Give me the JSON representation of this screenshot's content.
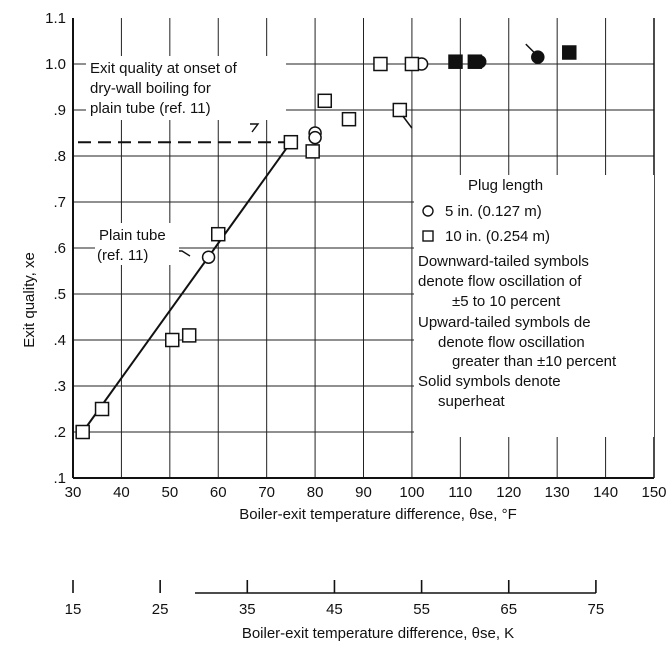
{
  "chart_data": {
    "type": "scatter",
    "xlabel": "Boiler-exit temperature difference, θse, °F",
    "ylabel": "Exit quality, xe",
    "xlim": [
      30,
      150
    ],
    "ylim": [
      0.1,
      1.1
    ],
    "x_ticks": [
      30,
      40,
      50,
      60,
      70,
      80,
      90,
      100,
      110,
      120,
      130,
      140,
      150
    ],
    "y_ticks": [
      ".1",
      ".2",
      ".3",
      ".4",
      ".5",
      ".6",
      ".7",
      ".8",
      ".9",
      "1.0",
      "1.1"
    ],
    "y_tick_values": [
      0.1,
      0.2,
      0.3,
      0.4,
      0.5,
      0.6,
      0.7,
      0.8,
      0.9,
      1.0,
      1.1
    ],
    "grid": true,
    "series": [
      {
        "name": "5 in. (0.127 m)",
        "marker": "circle",
        "points": [
          {
            "x": 58,
            "y": 0.58,
            "fill": "open",
            "tail": "none"
          },
          {
            "x": 80,
            "y": 0.85,
            "fill": "open",
            "tail": "none"
          },
          {
            "x": 80,
            "y": 0.84,
            "fill": "open",
            "tail": "none"
          },
          {
            "x": 102,
            "y": 1.0,
            "fill": "open",
            "tail": "none"
          },
          {
            "x": 114,
            "y": 1.005,
            "fill": "solid",
            "tail": "none"
          },
          {
            "x": 126,
            "y": 1.015,
            "fill": "solid",
            "tail": "up"
          }
        ]
      },
      {
        "name": "10 in. (0.254 m)",
        "marker": "square",
        "points": [
          {
            "x": 32,
            "y": 0.2,
            "fill": "open",
            "tail": "none"
          },
          {
            "x": 36,
            "y": 0.25,
            "fill": "open",
            "tail": "none"
          },
          {
            "x": 50.5,
            "y": 0.4,
            "fill": "open",
            "tail": "none"
          },
          {
            "x": 54,
            "y": 0.41,
            "fill": "open",
            "tail": "none"
          },
          {
            "x": 60,
            "y": 0.63,
            "fill": "open",
            "tail": "none"
          },
          {
            "x": 75,
            "y": 0.83,
            "fill": "open",
            "tail": "none"
          },
          {
            "x": 79.5,
            "y": 0.81,
            "fill": "open",
            "tail": "none"
          },
          {
            "x": 82,
            "y": 0.92,
            "fill": "open",
            "tail": "none"
          },
          {
            "x": 87,
            "y": 0.88,
            "fill": "open",
            "tail": "none"
          },
          {
            "x": 93.5,
            "y": 1.0,
            "fill": "open",
            "tail": "none"
          },
          {
            "x": 97.5,
            "y": 0.9,
            "fill": "open",
            "tail": "down"
          },
          {
            "x": 100,
            "y": 1.0,
            "fill": "open",
            "tail": "none"
          },
          {
            "x": 109,
            "y": 1.005,
            "fill": "solid",
            "tail": "none"
          },
          {
            "x": 113,
            "y": 1.005,
            "fill": "solid",
            "tail": "none"
          },
          {
            "x": 132.5,
            "y": 1.025,
            "fill": "solid",
            "tail": "none"
          }
        ]
      }
    ],
    "plain_tube_line": {
      "x": [
        32,
        75
      ],
      "y": [
        0.2,
        0.83
      ]
    },
    "onset_line_y": 0.83,
    "annotations": {
      "onset": [
        "Exit quality at onset of",
        "dry-wall boiling for",
        "plain tube (ref. 11)"
      ],
      "plain_tube": [
        "Plain tube",
        "(ref. 11)"
      ]
    },
    "legend": {
      "title": "Plug length",
      "circle_label": "5 in. (0.127 m)",
      "square_label": "10 in. (0.254 m)",
      "notes": [
        "Downward-tailed symbols",
        "denote flow oscillation of",
        "±5 to 10 percent",
        "Upward-tailed symbols de",
        "denote flow oscillation",
        "greater than ±10 percent",
        "Solid symbols denote",
        "superheat"
      ]
    },
    "secondary_axis": {
      "ticks": [
        15,
        25,
        35,
        45,
        55,
        65,
        75
      ],
      "xlabel": "Boiler-exit temperature difference, θse, K"
    }
  }
}
